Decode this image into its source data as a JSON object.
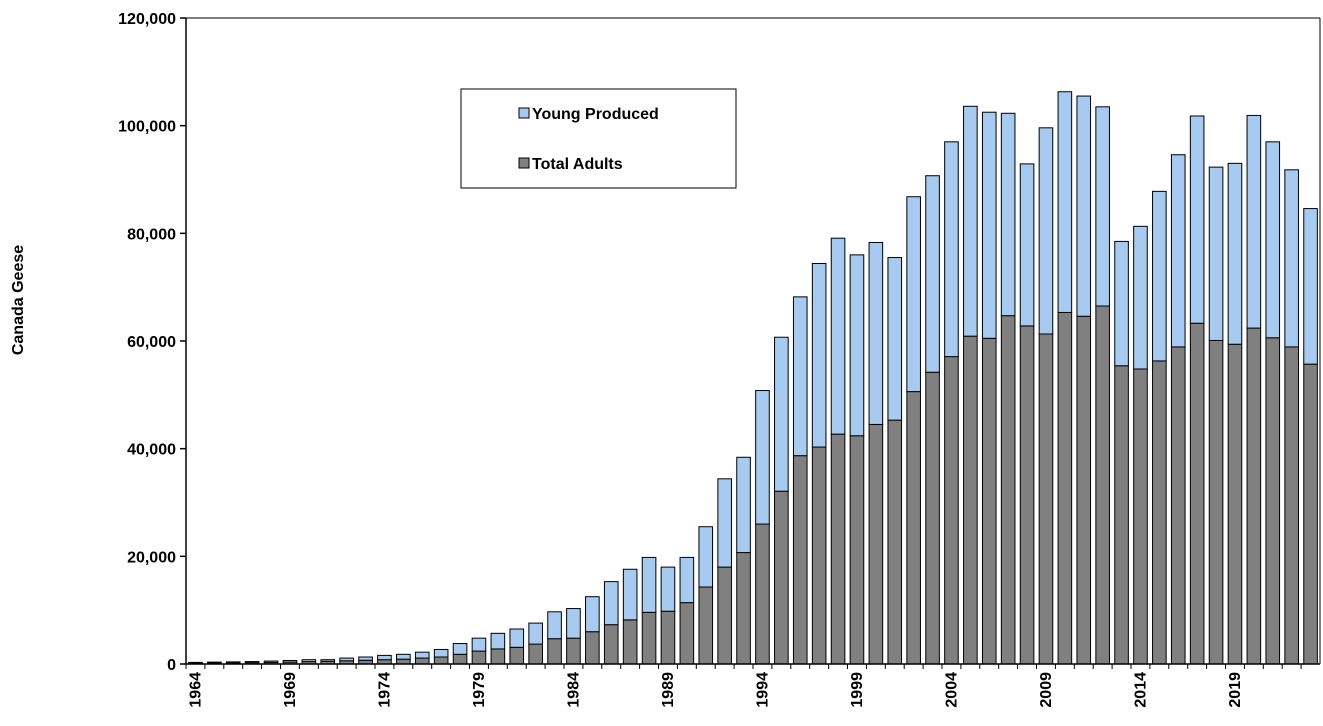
{
  "chart_data": {
    "type": "bar",
    "stacked": true,
    "title": "",
    "xlabel": "",
    "ylabel": "Canada Geese",
    "ylim": [
      0,
      120000
    ],
    "yticks": [
      0,
      20000,
      40000,
      60000,
      80000,
      100000,
      120000
    ],
    "ytick_labels": [
      "0",
      "20,000",
      "40,000",
      "60,000",
      "80,000",
      "100,000",
      "120,000"
    ],
    "xtick_labels": [
      "1964",
      "1969",
      "1974",
      "1979",
      "1984",
      "1989",
      "1994",
      "1999",
      "2004",
      "2009",
      "2014",
      "2019"
    ],
    "grid": false,
    "legend_position": "top-center",
    "categories": [
      "1964",
      "1965",
      "1966",
      "1967",
      "1968",
      "1969",
      "1970",
      "1971",
      "1972",
      "1973",
      "1974",
      "1975",
      "1976",
      "1977",
      "1978",
      "1979",
      "1980",
      "1981",
      "1982",
      "1983",
      "1984",
      "1985",
      "1986",
      "1987",
      "1988",
      "1989",
      "1990",
      "1991",
      "1992",
      "1993",
      "1994",
      "1995",
      "1996",
      "1997",
      "1998",
      "1999",
      "2000",
      "2001",
      "2002",
      "2003",
      "2004",
      "2005",
      "2006",
      "2007",
      "2008",
      "2009",
      "2010",
      "2011",
      "2012",
      "2013",
      "2014",
      "2015",
      "2016",
      "2017",
      "2018",
      "2019",
      "2020",
      "2021",
      "2022",
      "2023"
    ],
    "series": [
      {
        "name": "Total Adults",
        "color": "#808080",
        "values": [
          150,
          200,
          200,
          250,
          300,
          350,
          450,
          500,
          600,
          700,
          800,
          900,
          1100,
          1300,
          1800,
          2400,
          2800,
          3100,
          3700,
          4700,
          4800,
          6000,
          7300,
          8200,
          9600,
          9800,
          11400,
          14300,
          18000,
          20700,
          26000,
          32100,
          38700,
          40300,
          42700,
          42400,
          44500,
          45300,
          50600,
          54200,
          57100,
          60900,
          60500,
          64700,
          62800,
          61300,
          65300,
          64600,
          66500,
          55400,
          54800,
          56300,
          58900,
          63300,
          60100,
          59400,
          62400,
          60600,
          58900,
          55700
        ]
      },
      {
        "name": "Young Produced",
        "color": "#A6CAF0",
        "values": [
          150,
          150,
          200,
          200,
          250,
          300,
          350,
          300,
          500,
          600,
          800,
          900,
          1100,
          1400,
          2000,
          2400,
          2900,
          3400,
          3900,
          5000,
          5500,
          6500,
          8000,
          9400,
          10200,
          8200,
          8400,
          11200,
          16400,
          17700,
          24800,
          28600,
          29500,
          34100,
          36400,
          33600,
          33800,
          30200,
          36200,
          36500,
          39900,
          42700,
          42000,
          37600,
          30100,
          38300,
          41000,
          40900,
          37000,
          23100,
          26500,
          31500,
          35700,
          38500,
          32200,
          33600,
          39500,
          36400,
          32900,
          28900
        ]
      }
    ]
  }
}
